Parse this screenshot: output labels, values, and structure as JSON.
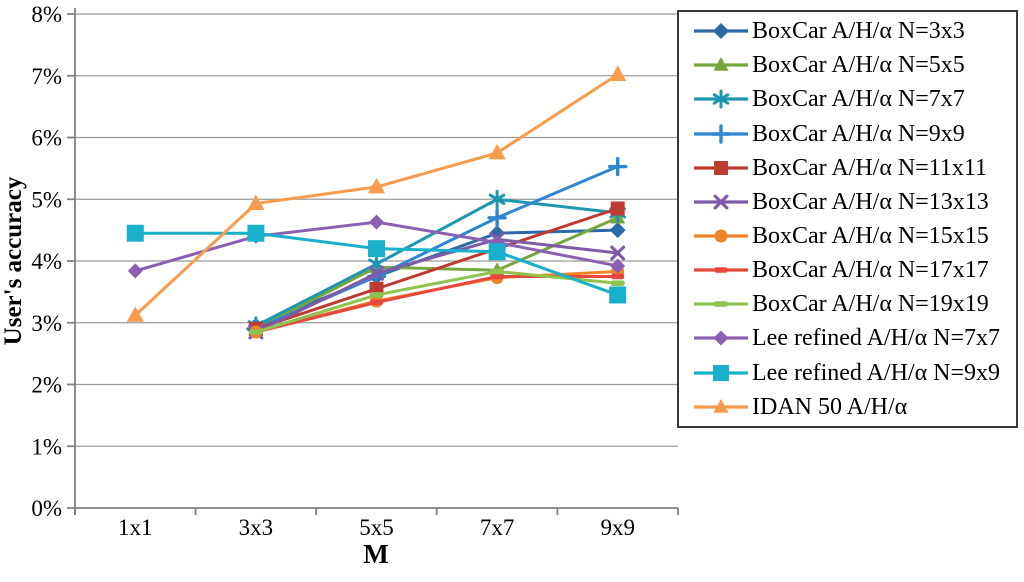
{
  "chart_data": {
    "type": "line",
    "title": "",
    "xlabel": "M",
    "ylabel": "User's accuracy",
    "categories": [
      "1x1",
      "3x3",
      "5x5",
      "7x7",
      "9x9"
    ],
    "y_ticks": [
      "0%",
      "1%",
      "2%",
      "3%",
      "4%",
      "5%",
      "6%",
      "7%",
      "8%"
    ],
    "ylim": [
      0,
      8
    ],
    "grid": "horizontal",
    "legend_position": "right",
    "axis_color": "#808080",
    "grid_color": "#9b9b9b",
    "series": [
      {
        "name": "BoxCar A/H/α N=3x3",
        "color": "#2D69A8",
        "marker": "diamond",
        "size": 8,
        "values": [
          null,
          2.95,
          3.75,
          4.45,
          4.5
        ]
      },
      {
        "name": "BoxCar A/H/α N=5x5",
        "color": "#76A73E",
        "marker": "triangle",
        "size": 8,
        "values": [
          null,
          2.9,
          3.9,
          3.85,
          4.7
        ]
      },
      {
        "name": "BoxCar A/H/α N=7x7",
        "color": "#1E96AE",
        "marker": "asterisk",
        "size": 8,
        "values": [
          null,
          2.95,
          3.95,
          5.0,
          4.78
        ]
      },
      {
        "name": "BoxCar A/H/α N=9x9",
        "color": "#2F87D2",
        "marker": "plus",
        "size": 8,
        "values": [
          null,
          2.9,
          3.75,
          4.7,
          5.53
        ]
      },
      {
        "name": "BoxCar A/H/α N=11x11",
        "color": "#BE3B32",
        "marker": "square",
        "size": 7,
        "values": [
          null,
          2.9,
          3.55,
          4.2,
          4.85
        ]
      },
      {
        "name": "BoxCar A/H/α N=13x13",
        "color": "#7D5BA6",
        "marker": "x",
        "size": 7.5,
        "values": [
          null,
          2.85,
          3.8,
          4.35,
          4.13
        ]
      },
      {
        "name": "BoxCar A/H/α N=15x15",
        "color": "#EC8528",
        "marker": "circle",
        "size": 7,
        "values": [
          null,
          2.85,
          3.35,
          3.73,
          3.83
        ]
      },
      {
        "name": "BoxCar A/H/α N=17x17",
        "color": "#E6483C",
        "marker": "dash",
        "size": 6.5,
        "values": [
          null,
          2.85,
          3.33,
          3.75,
          3.75
        ]
      },
      {
        "name": "BoxCar A/H/α N=19x19",
        "color": "#8FC24E",
        "marker": "dash",
        "size": 7,
        "values": [
          null,
          2.85,
          3.45,
          3.83,
          3.64
        ]
      },
      {
        "name": "Lee refined A/H/α N=7x7",
        "color": "#8A60B2",
        "marker": "diamond",
        "size": 7.5,
        "values": [
          3.84,
          4.4,
          4.63,
          4.3,
          3.92
        ]
      },
      {
        "name": "Lee refined A/H/α N=9x9",
        "color": "#19B0CC",
        "marker": "square",
        "size": 8.5,
        "values": [
          4.45,
          4.45,
          4.2,
          4.15,
          3.45
        ]
      },
      {
        "name": "IDAN 50 A/H/α",
        "color": "#F89B4C",
        "marker": "triangle",
        "size": 9,
        "values": [
          3.12,
          4.93,
          5.2,
          5.75,
          7.02
        ]
      }
    ]
  }
}
